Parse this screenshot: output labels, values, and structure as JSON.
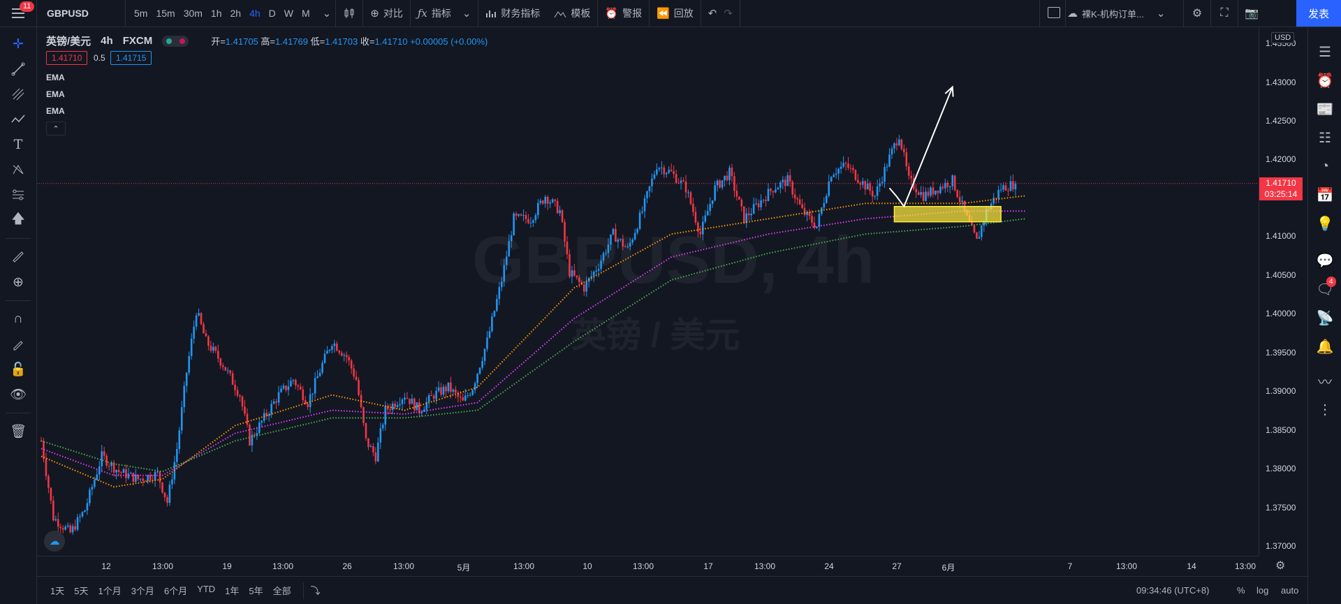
{
  "topbar": {
    "menu_badge": "11",
    "symbol": "GBPUSD",
    "intervals": [
      "5m",
      "15m",
      "30m",
      "1h",
      "2h",
      "4h",
      "D",
      "W",
      "M"
    ],
    "active_interval": "4h",
    "compare_label": "对比",
    "indicators_label": "指标",
    "financials_label": "财务指标",
    "templates_label": "模板",
    "alert_label": "警报",
    "replay_label": "回放",
    "layout_name": "裸K-机构订单...",
    "publish_label": "发表"
  },
  "legend": {
    "name": "英镑/美元",
    "interval": "4h",
    "exchange": "FXCM",
    "open_label": "开=",
    "open": "1.41705",
    "high_label": "高=",
    "high": "1.41769",
    "low_label": "低=",
    "low": "1.41703",
    "close_label": "收=",
    "close": "1.41710",
    "change": "+0.00005 (+0.00%)",
    "bid": "1.41710",
    "spread": "0.5",
    "ask": "1.41715",
    "indicators": [
      "EMA",
      "EMA",
      "EMA"
    ],
    "collapse_icon": "chevron-up-icon"
  },
  "watermark": {
    "main": "GBPUSD, 4h",
    "sub": "英镑 / 美元"
  },
  "price_axis": {
    "currency": "USD",
    "ticks": [
      "1.43500",
      "1.43000",
      "1.42500",
      "1.42000",
      "1.41500",
      "1.41000",
      "1.40500",
      "1.40000",
      "1.39500",
      "1.39000",
      "1.38500",
      "1.38000",
      "1.37500",
      "1.37000"
    ],
    "last_price": "1.41710",
    "countdown": "03:25:14"
  },
  "time_axis": {
    "ticks": [
      "12",
      "13:00",
      "19",
      "13:00",
      "26",
      "13:00",
      "5月",
      "13:00",
      "10",
      "13:00",
      "17",
      "13:00",
      "24",
      "27",
      "6月",
      "7",
      "13:00",
      "14",
      "13:00"
    ]
  },
  "bottombar": {
    "ranges": [
      "1天",
      "5天",
      "1个月",
      "3个月",
      "6个月",
      "YTD",
      "1年",
      "5年",
      "全部"
    ],
    "time": "09:34:46 (UTC+8)",
    "percent_label": "%",
    "log_label": "log",
    "auto_label": "auto"
  },
  "righttb": {
    "chat_badge": "4"
  },
  "colors": {
    "up": "#2196f3",
    "down": "#f23645",
    "ema_fast": "#ff9800",
    "ema_mid": "#e040fb",
    "ema_slow": "#4caf50",
    "zone": "#ffeb3b",
    "accent": "#2962ff"
  },
  "chart_data": {
    "type": "candlestick",
    "symbol": "GBPUSD",
    "timeframe": "4h",
    "ylim": [
      1.3685,
      1.4375
    ],
    "last_price": 1.4171,
    "price_anchors": [
      [
        0,
        1.3835
      ],
      [
        5,
        1.3735
      ],
      [
        12,
        1.3715
      ],
      [
        18,
        1.3745
      ],
      [
        25,
        1.3815
      ],
      [
        32,
        1.3795
      ],
      [
        40,
        1.3785
      ],
      [
        48,
        1.3792
      ],
      [
        52,
        1.3755
      ],
      [
        56,
        1.3825
      ],
      [
        60,
        1.3925
      ],
      [
        64,
        1.4005
      ],
      [
        68,
        1.3965
      ],
      [
        75,
        1.3935
      ],
      [
        82,
        1.3895
      ],
      [
        86,
        1.3835
      ],
      [
        92,
        1.3865
      ],
      [
        98,
        1.3895
      ],
      [
        104,
        1.3915
      ],
      [
        110,
        1.3885
      ],
      [
        116,
        1.3935
      ],
      [
        120,
        1.3965
      ],
      [
        126,
        1.3945
      ],
      [
        130,
        1.3915
      ],
      [
        134,
        1.3835
      ],
      [
        138,
        1.3815
      ],
      [
        142,
        1.3875
      ],
      [
        150,
        1.3895
      ],
      [
        156,
        1.3875
      ],
      [
        162,
        1.3895
      ],
      [
        168,
        1.3905
      ],
      [
        174,
        1.3885
      ],
      [
        178,
        1.3905
      ],
      [
        184,
        1.3965
      ],
      [
        190,
        1.4045
      ],
      [
        195,
        1.4125
      ],
      [
        202,
        1.4125
      ],
      [
        208,
        1.4155
      ],
      [
        214,
        1.4135
      ],
      [
        218,
        1.4055
      ],
      [
        224,
        1.4035
      ],
      [
        230,
        1.4065
      ],
      [
        236,
        1.4105
      ],
      [
        242,
        1.4085
      ],
      [
        248,
        1.4135
      ],
      [
        254,
        1.4195
      ],
      [
        260,
        1.4185
      ],
      [
        266,
        1.4165
      ],
      [
        272,
        1.4105
      ],
      [
        278,
        1.4165
      ],
      [
        284,
        1.4185
      ],
      [
        290,
        1.4125
      ],
      [
        296,
        1.4145
      ],
      [
        302,
        1.4165
      ],
      [
        308,
        1.4175
      ],
      [
        314,
        1.4135
      ],
      [
        320,
        1.4115
      ],
      [
        326,
        1.4185
      ],
      [
        332,
        1.4195
      ],
      [
        338,
        1.4175
      ],
      [
        344,
        1.4155
      ],
      [
        350,
        1.4205
      ],
      [
        354,
        1.4235
      ],
      [
        358,
        1.4175
      ],
      [
        364,
        1.4155
      ],
      [
        370,
        1.4165
      ],
      [
        376,
        1.4175
      ],
      [
        382,
        1.4125
      ],
      [
        386,
        1.4095
      ],
      [
        390,
        1.4135
      ],
      [
        396,
        1.4165
      ],
      [
        402,
        1.4171
      ]
    ],
    "ema_fast_anchors": [
      [
        0,
        1.3815
      ],
      [
        30,
        1.3775
      ],
      [
        50,
        1.3785
      ],
      [
        80,
        1.3855
      ],
      [
        120,
        1.3895
      ],
      [
        150,
        1.3875
      ],
      [
        180,
        1.3905
      ],
      [
        220,
        1.4035
      ],
      [
        260,
        1.4105
      ],
      [
        300,
        1.4125
      ],
      [
        340,
        1.4145
      ],
      [
        380,
        1.4145
      ],
      [
        406,
        1.4155
      ]
    ],
    "ema_mid_anchors": [
      [
        0,
        1.3825
      ],
      [
        30,
        1.379
      ],
      [
        50,
        1.379
      ],
      [
        80,
        1.3845
      ],
      [
        120,
        1.3875
      ],
      [
        150,
        1.387
      ],
      [
        180,
        1.3885
      ],
      [
        220,
        1.3995
      ],
      [
        260,
        1.4075
      ],
      [
        300,
        1.4105
      ],
      [
        340,
        1.4125
      ],
      [
        380,
        1.4135
      ],
      [
        406,
        1.4135
      ]
    ],
    "ema_slow_anchors": [
      [
        0,
        1.3835
      ],
      [
        30,
        1.3805
      ],
      [
        50,
        1.3795
      ],
      [
        80,
        1.3835
      ],
      [
        120,
        1.3865
      ],
      [
        150,
        1.3865
      ],
      [
        180,
        1.3875
      ],
      [
        220,
        1.3965
      ],
      [
        260,
        1.4045
      ],
      [
        300,
        1.408
      ],
      [
        340,
        1.4105
      ],
      [
        380,
        1.4115
      ],
      [
        406,
        1.4125
      ]
    ],
    "zone": {
      "x_start": 352,
      "x_end": 396,
      "price_top": 1.4141,
      "price_bottom": 1.4121
    },
    "arrow": {
      "start": [
        353,
        1.4154
      ],
      "mid": [
        356,
        1.4141
      ],
      "end": [
        376,
        1.4297
      ],
      "tail": [
        350,
        1.4165
      ]
    }
  }
}
